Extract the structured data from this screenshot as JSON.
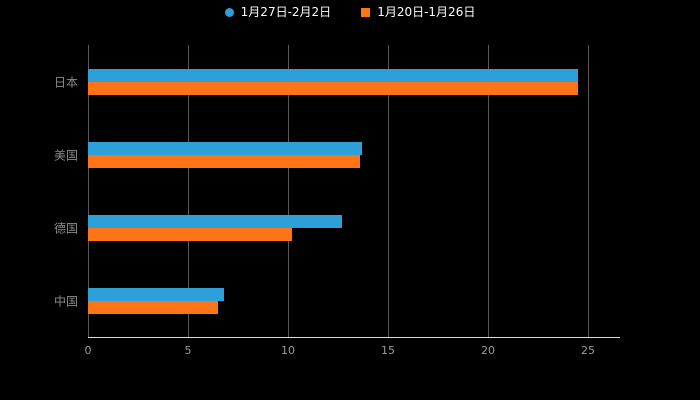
{
  "chart_data": {
    "type": "bar",
    "orientation": "horizontal",
    "title": "",
    "xlabel": "",
    "ylabel": "",
    "categories": [
      "日本",
      "美国",
      "德国",
      "中国"
    ],
    "series": [
      {
        "name": "1月27日-2月2日",
        "color": "#2DA0DA",
        "marker_shape": "circle",
        "values": [
          24.5,
          13.7,
          12.7,
          6.8
        ]
      },
      {
        "name": "1月20日-1月26日",
        "color": "#FF7417",
        "marker_shape": "square",
        "values": [
          24.5,
          13.6,
          10.2,
          6.5
        ]
      }
    ],
    "xlim": [
      0,
      26.6
    ],
    "xticks": [
      0,
      5,
      10,
      15,
      20,
      25
    ],
    "grid": true,
    "legend_position": "top",
    "background_color": "#000000",
    "axis_text_color": "#9b9b9b",
    "category_text_color": "#8a8a8a",
    "gridline_color": "#5a5a5a"
  }
}
